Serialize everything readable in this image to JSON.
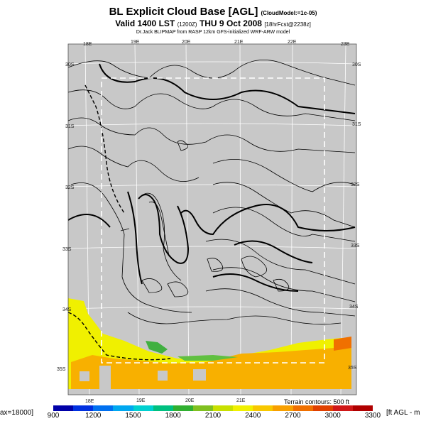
{
  "header": {
    "title": "BL Explicit Cloud Base [AGL]",
    "title_suffix": "(CloudModel:=1c-05)",
    "valid": "Valid 1400 LST",
    "valid_code": "(1200Z)",
    "valid_date": "THU 9 Oct 2008",
    "forecast_tag": "[18hrFcst@2238z]",
    "credit": "Dr.Jack BLIPMAP from RASP 12km GFS-initialized WRF-ARW model"
  },
  "map": {
    "lon_labels_top": [
      "18E",
      "19E",
      "20E",
      "21E",
      "22E",
      "23E"
    ],
    "lon_labels_bottom": [
      "18E",
      "19E",
      "20E",
      "21E"
    ],
    "lat_labels_left": [
      "30S",
      "31S",
      "32S",
      "33S",
      "34S",
      "35S"
    ],
    "lat_labels_right": [
      "30S",
      "31S",
      "32S",
      "33S",
      "34S",
      "35S"
    ],
    "terrain_note": "Terrain contours: 500 ft",
    "background_color": "#c8c8c8"
  },
  "colorbar": {
    "min_label": "ax=18000]",
    "unit_label": "[ft AGL - m",
    "ticks": [
      "900",
      "1200",
      "1500",
      "1800",
      "2100",
      "2400",
      "2700",
      "3000",
      "3300"
    ],
    "colors": [
      "#0000a8",
      "#0030e0",
      "#0070f0",
      "#00a8f0",
      "#00d0d0",
      "#00c080",
      "#30b030",
      "#80c020",
      "#c8e000",
      "#f0f000",
      "#f8c800",
      "#f8a000",
      "#f07000",
      "#e04000",
      "#d01818",
      "#b00000"
    ]
  }
}
